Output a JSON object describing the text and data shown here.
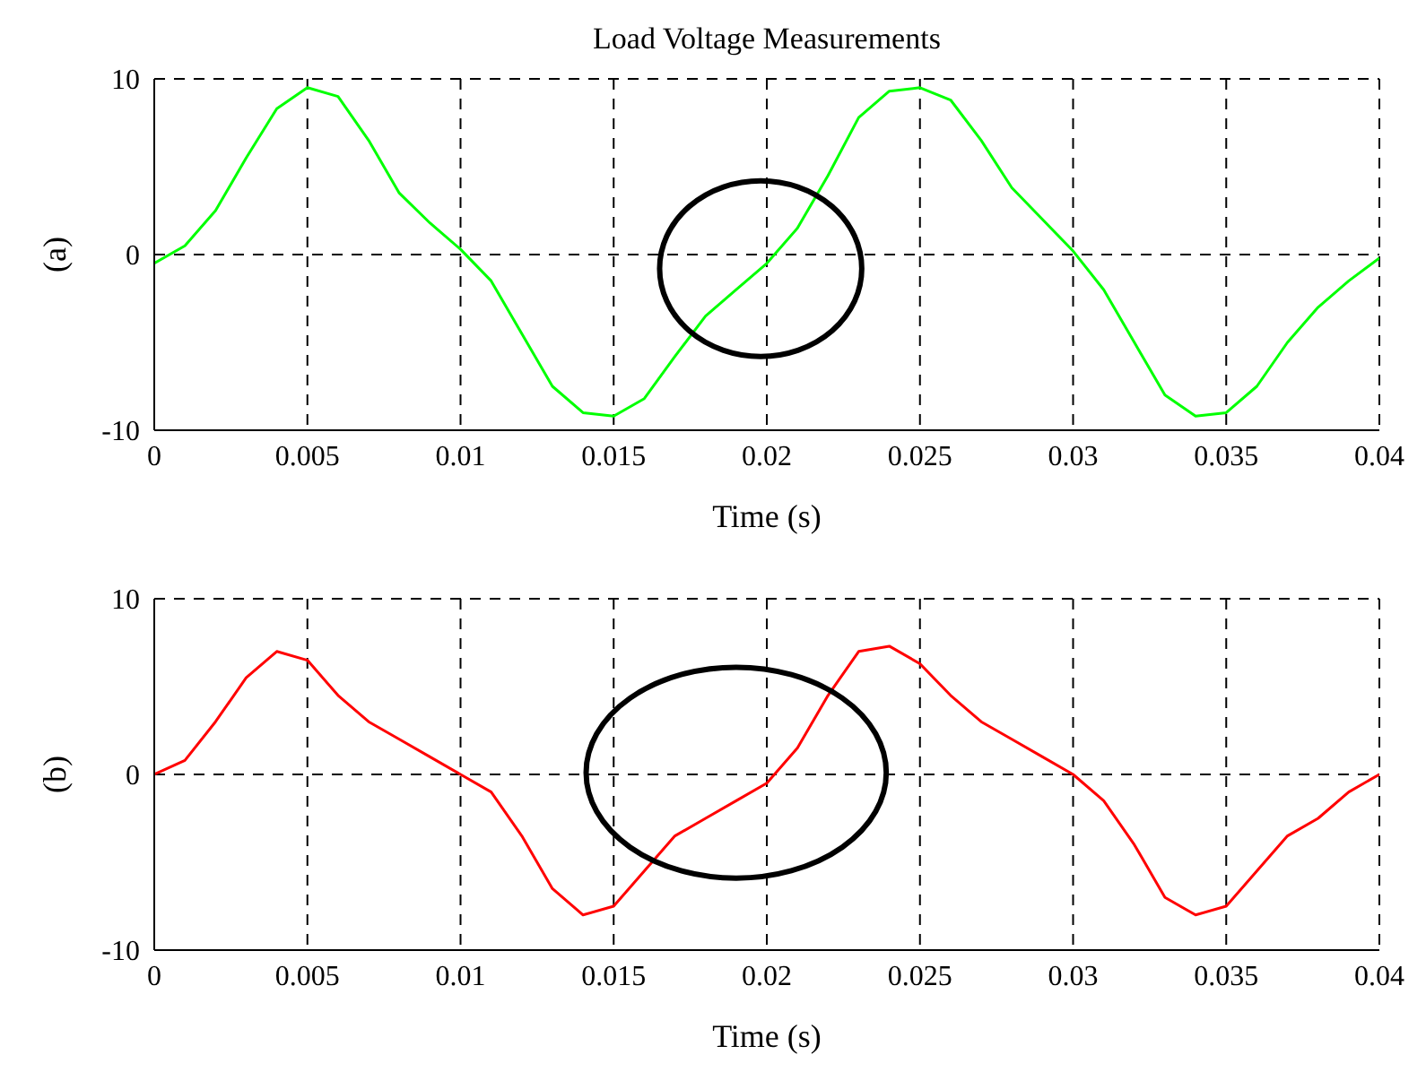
{
  "chart_data": [
    {
      "type": "line",
      "title": "Load Voltage Measurements",
      "xlabel": "Time (s)",
      "ylabel": "(a)",
      "x": [
        0,
        0.001,
        0.002,
        0.003,
        0.004,
        0.005,
        0.006,
        0.007,
        0.008,
        0.009,
        0.01,
        0.011,
        0.012,
        0.013,
        0.014,
        0.015,
        0.016,
        0.017,
        0.018,
        0.019,
        0.02,
        0.021,
        0.022,
        0.023,
        0.024,
        0.025,
        0.026,
        0.027,
        0.028,
        0.029,
        0.03,
        0.031,
        0.032,
        0.033,
        0.034,
        0.035,
        0.036,
        0.037,
        0.038,
        0.039,
        0.04
      ],
      "series": [
        {
          "color": "#00ff00",
          "values": [
            -0.5,
            0.5,
            2.5,
            5.5,
            8.3,
            9.5,
            9.0,
            6.5,
            3.5,
            1.8,
            0.3,
            -1.5,
            -4.5,
            -7.5,
            -9.0,
            -9.2,
            -8.2,
            -5.8,
            -3.5,
            -2.0,
            -0.5,
            1.5,
            4.5,
            7.8,
            9.3,
            9.5,
            8.8,
            6.5,
            3.8,
            2.0,
            0.2,
            -2.0,
            -5.0,
            -8.0,
            -9.2,
            -9.0,
            -7.5,
            -5.0,
            -3.0,
            -1.5,
            -0.2
          ]
        }
      ],
      "xlim": [
        0,
        0.04
      ],
      "xticks": [
        0,
        0.005,
        0.01,
        0.015,
        0.02,
        0.025,
        0.03,
        0.035,
        0.04
      ],
      "ylim": [
        -10,
        10
      ],
      "yticks": [
        -10,
        0,
        10
      ],
      "grid": true
    },
    {
      "type": "line",
      "xlabel": "Time (s)",
      "ylabel": "(b)",
      "x": [
        0,
        0.001,
        0.002,
        0.003,
        0.004,
        0.005,
        0.006,
        0.007,
        0.008,
        0.009,
        0.01,
        0.011,
        0.012,
        0.013,
        0.014,
        0.015,
        0.016,
        0.017,
        0.018,
        0.019,
        0.02,
        0.021,
        0.022,
        0.023,
        0.024,
        0.025,
        0.026,
        0.027,
        0.028,
        0.029,
        0.03,
        0.031,
        0.032,
        0.033,
        0.034,
        0.035,
        0.036,
        0.037,
        0.038,
        0.039,
        0.04
      ],
      "series": [
        {
          "color": "#ff0000",
          "values": [
            0,
            0.8,
            3,
            5.5,
            7,
            6.5,
            4.5,
            3,
            2,
            1,
            0,
            -1,
            -3.5,
            -6.5,
            -8,
            -7.5,
            -5.5,
            -3.5,
            -2.5,
            -1.5,
            -0.5,
            1.5,
            4.5,
            7,
            7.3,
            6.3,
            4.5,
            3,
            2,
            1,
            0,
            -1.5,
            -4,
            -7,
            -8,
            -7.5,
            -5.5,
            -3.5,
            -2.5,
            -1,
            0
          ]
        }
      ],
      "xlim": [
        0,
        0.04
      ],
      "xticks": [
        0,
        0.005,
        0.01,
        0.015,
        0.02,
        0.025,
        0.03,
        0.035,
        0.04
      ],
      "ylim": [
        -10,
        10
      ],
      "yticks": [
        -10,
        0,
        10
      ],
      "grid": true
    }
  ]
}
